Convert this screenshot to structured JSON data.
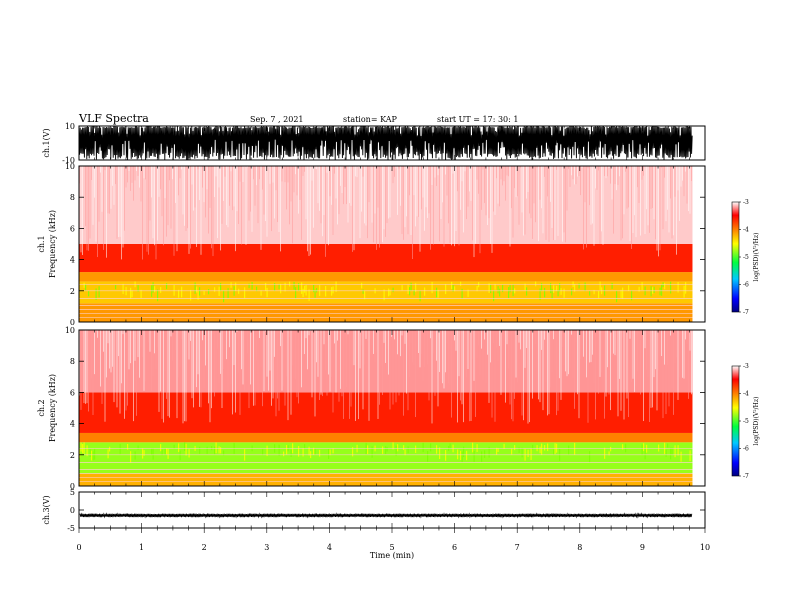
{
  "header": {
    "title": "VLF Spectra",
    "date": "Sep. 7 , 2021",
    "station": "station= KAP",
    "start_ut": "start UT =  17: 30: 1"
  },
  "chart_data": [
    {
      "type": "line",
      "panel": "ch1-waveform",
      "ylabel": "ch.1(V)",
      "ylim": [
        -10,
        10
      ],
      "yticks": [
        "10",
        "-10"
      ],
      "xlim": [
        0,
        10
      ],
      "data_end_min": 9.8,
      "description_values": "dense oscillation filling most of range, mostly saturated between -7 and 10"
    },
    {
      "type": "heatmap",
      "panel": "ch1-spectrogram",
      "ylabel": "ch.1 Frequency (kHz)",
      "ylim": [
        0,
        10
      ],
      "yticks": [
        "0",
        "2",
        "4",
        "6",
        "8",
        "10"
      ],
      "xlim": [
        0,
        10
      ],
      "data_end_min": 9.8,
      "colorbar": {
        "label": "log(PSD)(V²/Hz)",
        "range": [
          -7,
          -3
        ],
        "ticks": [
          "-3",
          "-4",
          "-5",
          "-6",
          "-7"
        ]
      },
      "bands": [
        {
          "from_khz": 0,
          "to_khz": 1.2,
          "level": -4.1
        },
        {
          "from_khz": 1.2,
          "to_khz": 2.6,
          "level": -4.3
        },
        {
          "from_khz": 2.6,
          "to_khz": 3.2,
          "level": -4.1
        },
        {
          "from_khz": 3.2,
          "to_khz": 5,
          "level": -3.6
        },
        {
          "from_khz": 5,
          "to_khz": 10,
          "level": -3.1
        }
      ]
    },
    {
      "type": "heatmap",
      "panel": "ch2-spectrogram",
      "ylabel": "ch.2 Frequency (kHz)",
      "ylim": [
        0,
        10
      ],
      "yticks": [
        "0",
        "2",
        "4",
        "6",
        "8",
        "10"
      ],
      "xlim": [
        0,
        10
      ],
      "data_end_min": 9.8,
      "colorbar": {
        "label": "log(PSD)(V²/Hz)",
        "range": [
          -7,
          -3
        ],
        "ticks": [
          "-3",
          "-4",
          "-5",
          "-6",
          "-7"
        ]
      },
      "bands": [
        {
          "from_khz": 0,
          "to_khz": 0.8,
          "level": -4.2
        },
        {
          "from_khz": 0.8,
          "to_khz": 2.8,
          "level": -4.8
        },
        {
          "from_khz": 2.8,
          "to_khz": 3.4,
          "level": -4.0
        },
        {
          "from_khz": 3.4,
          "to_khz": 6,
          "level": -3.6
        },
        {
          "from_khz": 6,
          "to_khz": 10,
          "level": -3.2
        }
      ]
    },
    {
      "type": "line",
      "panel": "ch3-waveform",
      "ylabel": "ch.3(V)",
      "ylim": [
        -5,
        5
      ],
      "yticks": [
        "5",
        "0",
        "-5"
      ],
      "xlim": [
        0,
        10
      ],
      "data_end_min": 9.8,
      "centre_value": -1.5,
      "amplitude": 0.5,
      "xlabel": "Time (min)",
      "xticks": [
        "0",
        "1",
        "2",
        "3",
        "4",
        "5",
        "6",
        "7",
        "8",
        "9",
        "10"
      ]
    }
  ]
}
